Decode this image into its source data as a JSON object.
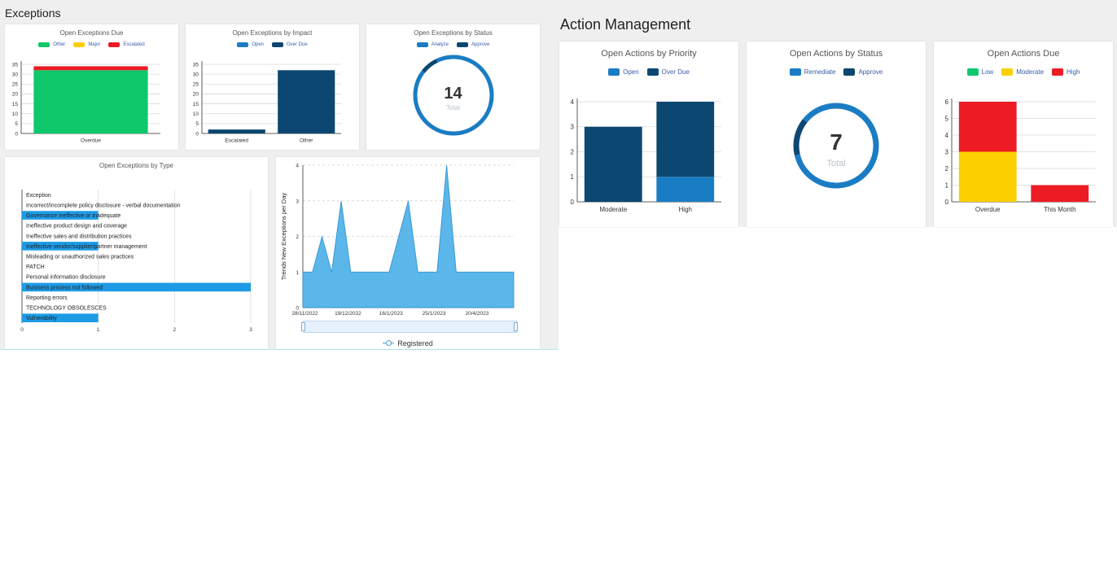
{
  "exceptions": {
    "title": "Exceptions",
    "due": {
      "title": "Open Exceptions Due",
      "legend": [
        {
          "label": "Other",
          "color": "#0ec86b"
        },
        {
          "label": "Major",
          "color": "#fbcf00"
        },
        {
          "label": "Escalated",
          "color": "#ed1c24"
        }
      ]
    },
    "impact": {
      "title": "Open Exceptions by Impact",
      "legend": [
        {
          "label": "Open",
          "color": "#1a7dc4"
        },
        {
          "label": "Over Due",
          "color": "#0c4772"
        }
      ]
    },
    "status": {
      "title": "Open Exceptions by Status",
      "legend": [
        {
          "label": "Analyze",
          "color": "#1a7dc4"
        },
        {
          "label": "Approve",
          "color": "#0c4772"
        }
      ],
      "total_value": "14",
      "total_label": "Total"
    },
    "type": {
      "title": "Open Exceptions by Type"
    },
    "trend": {
      "legend_label": "Registered"
    }
  },
  "actions": {
    "title": "Action Management",
    "priority": {
      "title": "Open Actions by Priority",
      "legend": [
        {
          "label": "Open",
          "color": "#1a7dc4"
        },
        {
          "label": "Over Due",
          "color": "#0c4772"
        }
      ]
    },
    "status": {
      "title": "Open Actions by Status",
      "legend": [
        {
          "label": "Remediate",
          "color": "#1a7dc4"
        },
        {
          "label": "Approve",
          "color": "#0c4772"
        }
      ],
      "total_value": "7",
      "total_label": "Total"
    },
    "due": {
      "title": "Open Actions Due",
      "legend": [
        {
          "label": "Low",
          "color": "#0ec86b"
        },
        {
          "label": "Moderate",
          "color": "#fbcf00"
        },
        {
          "label": "High",
          "color": "#ed1c24"
        }
      ]
    }
  },
  "chart_data": [
    {
      "id": "exc-due",
      "type": "bar",
      "categories": [
        "Overdue"
      ],
      "series": [
        {
          "name": "Other",
          "values": [
            32
          ],
          "color": "#0ec86b"
        },
        {
          "name": "Major",
          "values": [
            0
          ],
          "color": "#fbcf00"
        },
        {
          "name": "Escalated",
          "values": [
            2
          ],
          "color": "#ed1c24"
        }
      ],
      "ylim": [
        0,
        35
      ],
      "yticks": [
        0,
        5,
        10,
        15,
        20,
        25,
        30,
        35
      ],
      "stacked": true
    },
    {
      "id": "exc-impact",
      "type": "bar",
      "categories": [
        "Escalated",
        "Other"
      ],
      "series": [
        {
          "name": "Open",
          "values": [
            0,
            0
          ],
          "color": "#1a7dc4"
        },
        {
          "name": "Over Due",
          "values": [
            2,
            32
          ],
          "color": "#0c4772"
        }
      ],
      "ylim": [
        0,
        35
      ],
      "yticks": [
        0,
        5,
        10,
        15,
        20,
        25,
        30,
        35
      ],
      "stacked": true
    },
    {
      "id": "exc-status",
      "type": "pie",
      "slices": [
        {
          "name": "Analyze",
          "value": 13,
          "color": "#1a7dc4"
        },
        {
          "name": "Approve",
          "value": 1,
          "color": "#0c4772"
        }
      ]
    },
    {
      "id": "exc-type",
      "type": "bar",
      "orientation": "horizontal",
      "categories": [
        "Exception",
        "Incorrect/incomplete policy disclosure - verbal documentation",
        "Governance ineffective or inadequate",
        "Ineffective product design and coverage",
        "Ineffective sales and distribution practices",
        "Ineffective vendor/supplier/partner management",
        "Misleading or unauthorized sales practices",
        "PATCH",
        "Personal information disclosure",
        "Business process not followed",
        "Reporting errors",
        "TECHNOLOGY OBSOLESCES",
        "Vulnerability"
      ],
      "values": [
        0,
        0,
        1,
        0,
        0,
        1,
        0,
        0,
        0,
        3,
        0,
        0,
        1
      ],
      "xlim": [
        0,
        3
      ],
      "xticks": [
        0,
        1,
        2,
        3
      ],
      "color": "#1e9be6"
    },
    {
      "id": "exc-trend",
      "type": "area",
      "xticks": [
        "28/11/2022",
        "19/12/2022",
        "16/1/2023",
        "25/1/2023",
        "20/4/2023"
      ],
      "ylabel": "Trends New Exceptions per Day",
      "ylim": [
        0,
        4
      ],
      "yticks": [
        0,
        1,
        2,
        3,
        4
      ],
      "series": [
        {
          "name": "Registered",
          "values": [
            1,
            1,
            2,
            1,
            3,
            1,
            1,
            1,
            1,
            1,
            2,
            3,
            1,
            1,
            1,
            4,
            1,
            1,
            1,
            1,
            1,
            1,
            1
          ]
        }
      ],
      "color": "#5bb6ea"
    },
    {
      "id": "act-priority",
      "type": "bar",
      "categories": [
        "Moderate",
        "High"
      ],
      "series": [
        {
          "name": "Open",
          "values": [
            0,
            1
          ],
          "color": "#1a7dc4"
        },
        {
          "name": "Over Due",
          "values": [
            3,
            3
          ],
          "color": "#0c4772"
        }
      ],
      "ylim": [
        0,
        4
      ],
      "yticks": [
        0,
        1,
        2,
        3,
        4
      ],
      "stacked": true
    },
    {
      "id": "act-status",
      "type": "pie",
      "slices": [
        {
          "name": "Remediate",
          "value": 6,
          "color": "#1a7dc4"
        },
        {
          "name": "Approve",
          "value": 1,
          "color": "#0c4772"
        }
      ]
    },
    {
      "id": "act-due",
      "type": "bar",
      "categories": [
        "Overdue",
        "This Month"
      ],
      "series": [
        {
          "name": "Low",
          "values": [
            0,
            0
          ],
          "color": "#0ec86b"
        },
        {
          "name": "Moderate",
          "values": [
            3,
            0
          ],
          "color": "#fbcf00"
        },
        {
          "name": "High",
          "values": [
            3,
            1
          ],
          "color": "#ed1c24"
        }
      ],
      "ylim": [
        0,
        6
      ],
      "yticks": [
        0,
        1,
        2,
        3,
        4,
        5,
        6
      ],
      "stacked": true
    }
  ]
}
